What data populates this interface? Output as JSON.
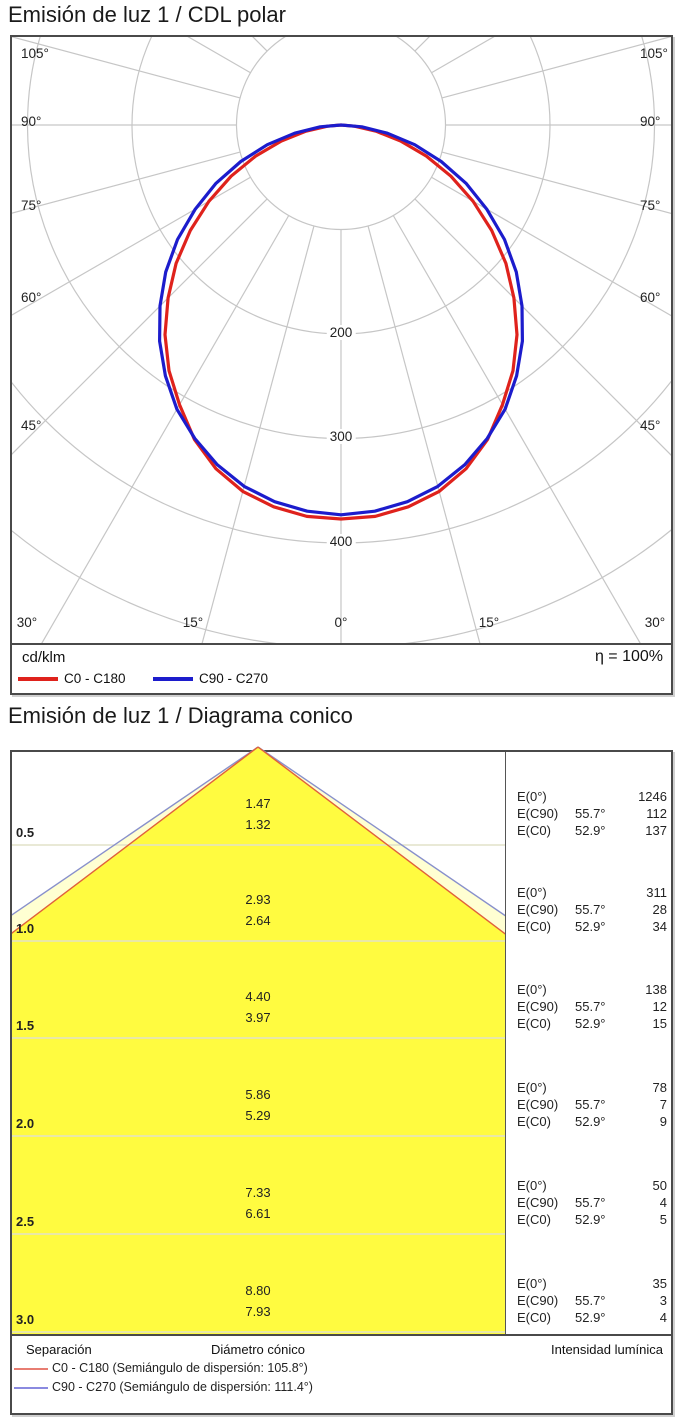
{
  "section1": {
    "title": "Emisión de luz 1 / CDL polar",
    "unit": "cd/klm",
    "efficiency": "η = 100%",
    "legend": [
      {
        "label": "C0 - C180",
        "color": "#df221c"
      },
      {
        "label": "C90 - C270",
        "color": "#1c1ccc"
      }
    ]
  },
  "section2": {
    "title": "Emisión de luz 1 / Diagrama conico",
    "footer": {
      "col1": "Separación",
      "col2": "Diámetro cónico",
      "col3": "Intensidad lumínica",
      "legend": [
        {
          "label": "C0 - C180 (Semiángulo de dispersión: 105.8°)",
          "color": "#e87d72"
        },
        {
          "label": "C90 - C270 (Semiángulo de dispersión: 111.4°)",
          "color": "#8a8ae0"
        }
      ]
    }
  },
  "chart_data": [
    {
      "type": "line",
      "subtype": "polar-intensity-diagram",
      "title": "Emisión de luz 1 / CDL polar",
      "units": "cd/klm",
      "efficiency_percent": 100,
      "grid_color": "#c6c6c6",
      "ring_values": [
        100,
        200,
        300,
        400,
        500
      ],
      "ring_labels": [
        "200",
        "300",
        "400"
      ],
      "angle_step_deg": 15,
      "angle_labels_side": [
        "105°",
        "90°",
        "75°",
        "60°",
        "45°"
      ],
      "angle_labels_bottom": [
        "30°",
        "15°",
        "0°",
        "15°",
        "30°"
      ],
      "series": [
        {
          "name": "C0 - C180",
          "color": "#df221c",
          "gamma_deg": [
            0,
            5,
            10,
            15,
            20,
            25,
            30,
            35,
            40,
            45,
            50,
            55,
            60,
            65,
            70,
            75,
            80,
            85,
            90
          ],
          "cd_per_klm": [
            377,
            376,
            371,
            363,
            350,
            332,
            309,
            287,
            262,
            234,
            206,
            176,
            146,
            116,
            87,
            59,
            34,
            13,
            0
          ]
        },
        {
          "name": "C90 - C270",
          "color": "#1c1ccc",
          "gamma_deg": [
            0,
            5,
            10,
            15,
            20,
            25,
            30,
            35,
            40,
            45,
            50,
            55,
            60,
            65,
            70,
            75,
            80,
            85,
            90
          ],
          "cd_per_klm": [
            373,
            371,
            366,
            358,
            346,
            331,
            314,
            293,
            270,
            245,
            219,
            191,
            161,
            132,
            102,
            73,
            45,
            20,
            0
          ]
        }
      ]
    },
    {
      "type": "table",
      "subtype": "cone-diagram",
      "title": "Emisión de luz 1 / Diagrama conico",
      "beam": {
        "c0_half_angle_deg": 52.9,
        "c90_half_angle_deg": 55.7,
        "c0_full_angle_deg": 105.8,
        "c90_full_angle_deg": 111.4
      },
      "colors": {
        "c0_fill": "#fffb40",
        "c90_fill": "#ffffd2",
        "c0_edge": "#e0603c",
        "c90_edge": "#8890cc"
      },
      "labels": {
        "e0": "E(0°)",
        "ec90": "E(C90)",
        "ec0": "E(C0)",
        "ang90": "55.7°",
        "ang0": "52.9°"
      },
      "rows": [
        {
          "separation_m": "0.5",
          "diameter_c90": "1.47",
          "diameter_c0": "1.32",
          "E0": "1246",
          "EC90": "112",
          "EC0": "137"
        },
        {
          "separation_m": "1.0",
          "diameter_c90": "2.93",
          "diameter_c0": "2.64",
          "E0": "311",
          "EC90": "28",
          "EC0": "34"
        },
        {
          "separation_m": "1.5",
          "diameter_c90": "4.40",
          "diameter_c0": "3.97",
          "E0": "138",
          "EC90": "12",
          "EC0": "15"
        },
        {
          "separation_m": "2.0",
          "diameter_c90": "5.86",
          "diameter_c0": "5.29",
          "E0": "78",
          "EC90": "7",
          "EC0": "9"
        },
        {
          "separation_m": "2.5",
          "diameter_c90": "7.33",
          "diameter_c0": "6.61",
          "E0": "50",
          "EC90": "4",
          "EC0": "5"
        },
        {
          "separation_m": "3.0",
          "diameter_c90": "8.80",
          "diameter_c0": "7.93",
          "E0": "35",
          "EC90": "3",
          "EC0": "4"
        }
      ]
    }
  ]
}
